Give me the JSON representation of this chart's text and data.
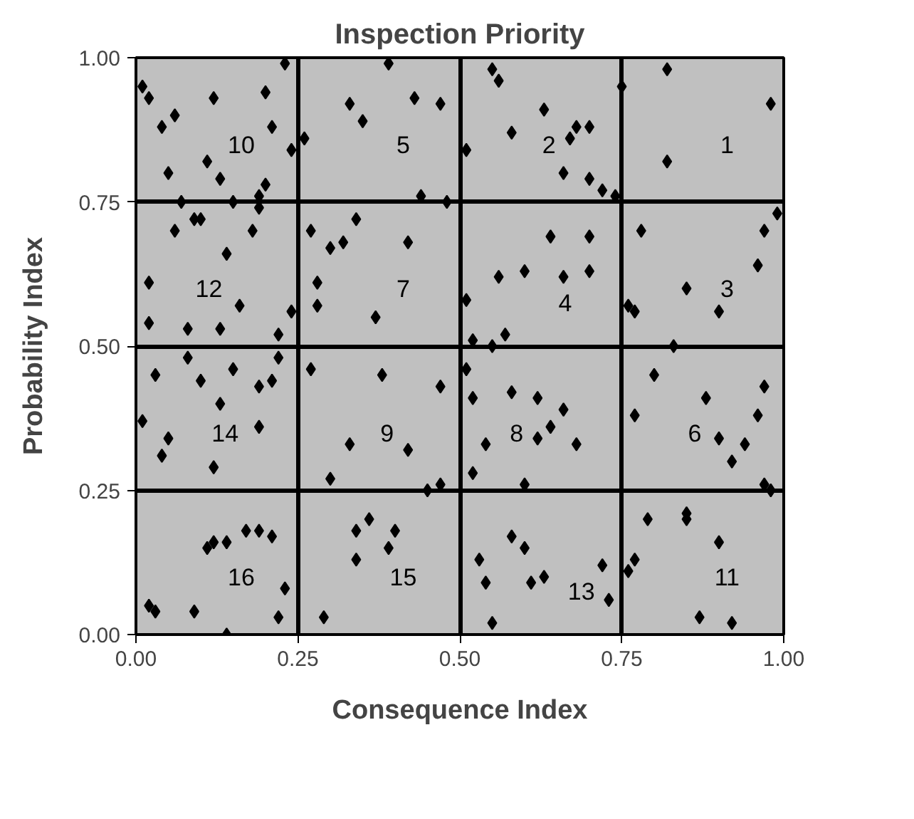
{
  "chart_data": {
    "type": "scatter",
    "title": "Inspection Priority",
    "xlabel": "Consequence Index",
    "ylabel": "Probability Index",
    "xlim": [
      0,
      1
    ],
    "ylim": [
      0,
      1
    ],
    "xticks": [
      {
        "value": 0,
        "label": "0.00"
      },
      {
        "value": 0.25,
        "label": "0.25"
      },
      {
        "value": 0.5,
        "label": "0.50"
      },
      {
        "value": 0.75,
        "label": "0.75"
      },
      {
        "value": 1,
        "label": "1.00"
      }
    ],
    "yticks": [
      {
        "value": 0,
        "label": "0.00"
      },
      {
        "value": 0.25,
        "label": "0.25"
      },
      {
        "value": 0.5,
        "label": "0.50"
      },
      {
        "value": 0.75,
        "label": "0.75"
      },
      {
        "value": 1,
        "label": "1.00"
      }
    ],
    "grid": true,
    "marker": "diamond",
    "series": [
      {
        "color": "#000000",
        "x": [
          0.01,
          0.02,
          0.04,
          0.06,
          0.05,
          0.07,
          0.09,
          0.12,
          0.11,
          0.13,
          0.15,
          0.2,
          0.21,
          0.2,
          0.24,
          0.23,
          0.19,
          0.33,
          0.35,
          0.39,
          0.43,
          0.47,
          0.44,
          0.26,
          0.51,
          0.55,
          0.56,
          0.58,
          0.63,
          0.67,
          0.68,
          0.7,
          0.72,
          0.66,
          0.7,
          0.74,
          0.82,
          0.82,
          0.75,
          0.98,
          0.02,
          0.02,
          0.06,
          0.1,
          0.14,
          0.16,
          0.18,
          0.19,
          0.08,
          0.13,
          0.22,
          0.24,
          0.27,
          0.3,
          0.32,
          0.34,
          0.37,
          0.28,
          0.28,
          0.42,
          0.48,
          0.51,
          0.56,
          0.6,
          0.64,
          0.66,
          0.7,
          0.7,
          0.52,
          0.55,
          0.57,
          0.78,
          0.85,
          0.9,
          0.96,
          0.99,
          0.76,
          0.77,
          0.83,
          0.97,
          0.01,
          0.04,
          0.05,
          0.08,
          0.1,
          0.12,
          0.13,
          0.15,
          0.19,
          0.19,
          0.21,
          0.22,
          0.03,
          0.3,
          0.33,
          0.38,
          0.42,
          0.47,
          0.47,
          0.27,
          0.51,
          0.52,
          0.54,
          0.58,
          0.62,
          0.62,
          0.64,
          0.66,
          0.68,
          0.6,
          0.52,
          0.77,
          0.8,
          0.88,
          0.9,
          0.94,
          0.96,
          0.97,
          0.92,
          0.97,
          0.98,
          0.02,
          0.03,
          0.09,
          0.11,
          0.12,
          0.14,
          0.17,
          0.19,
          0.21,
          0.23,
          0.22,
          0.14,
          0.29,
          0.34,
          0.34,
          0.36,
          0.39,
          0.4,
          0.45,
          0.53,
          0.54,
          0.55,
          0.58,
          0.6,
          0.61,
          0.63,
          0.72,
          0.73,
          0.76,
          0.77,
          0.79,
          0.85,
          0.85,
          0.87,
          0.9,
          0.92
        ],
        "values": [
          0.95,
          0.93,
          0.88,
          0.9,
          0.8,
          0.75,
          0.72,
          0.93,
          0.82,
          0.79,
          0.75,
          0.94,
          0.88,
          0.78,
          0.84,
          0.99,
          0.76,
          0.92,
          0.89,
          0.99,
          0.93,
          0.92,
          0.76,
          0.86,
          0.84,
          0.98,
          0.96,
          0.87,
          0.91,
          0.86,
          0.88,
          0.88,
          0.77,
          0.8,
          0.79,
          0.76,
          0.98,
          0.82,
          0.95,
          0.92,
          0.61,
          0.54,
          0.7,
          0.72,
          0.66,
          0.57,
          0.7,
          0.74,
          0.53,
          0.53,
          0.52,
          0.56,
          0.7,
          0.67,
          0.68,
          0.72,
          0.55,
          0.61,
          0.57,
          0.68,
          0.75,
          0.58,
          0.62,
          0.63,
          0.69,
          0.62,
          0.69,
          0.63,
          0.51,
          0.5,
          0.52,
          0.7,
          0.6,
          0.56,
          0.64,
          0.73,
          0.57,
          0.56,
          0.5,
          0.7,
          0.37,
          0.31,
          0.34,
          0.48,
          0.44,
          0.29,
          0.4,
          0.46,
          0.36,
          0.43,
          0.44,
          0.48,
          0.45,
          0.27,
          0.33,
          0.45,
          0.32,
          0.43,
          0.26,
          0.46,
          0.46,
          0.41,
          0.33,
          0.42,
          0.41,
          0.34,
          0.36,
          0.39,
          0.33,
          0.26,
          0.28,
          0.38,
          0.45,
          0.41,
          0.34,
          0.33,
          0.38,
          0.43,
          0.3,
          0.26,
          0.25,
          0.05,
          0.04,
          0.04,
          0.15,
          0.16,
          0.16,
          0.18,
          0.18,
          0.17,
          0.08,
          0.03,
          0.0,
          0.03,
          0.13,
          0.18,
          0.2,
          0.15,
          0.18,
          0.25,
          0.13,
          0.09,
          0.02,
          0.17,
          0.15,
          0.09,
          0.1,
          0.12,
          0.06,
          0.11,
          0.13,
          0.2,
          0.21,
          0.2,
          0.03,
          0.16,
          0.02
        ]
      }
    ],
    "annotations": [
      "10",
      "5",
      "2",
      "1",
      "12",
      "7",
      "4",
      "3",
      "14",
      "9",
      "8",
      "6",
      "16",
      "15",
      "13",
      "11"
    ]
  }
}
